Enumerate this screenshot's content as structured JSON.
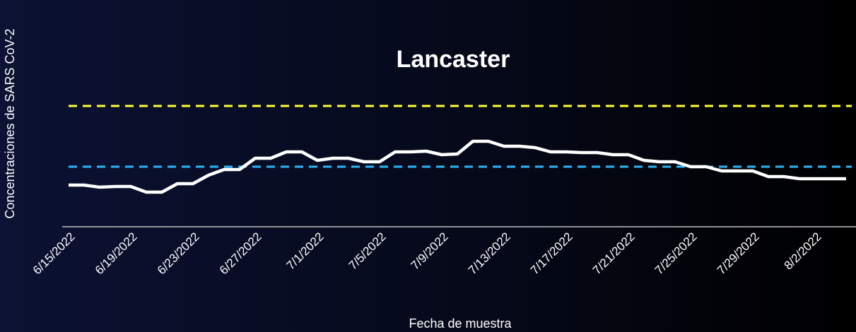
{
  "chart_data": {
    "type": "line",
    "title": "Lancaster",
    "y_label": "Concentraciones de SARS CoV-2",
    "x_label": "Fecha de muestra",
    "categories": [
      "6/15/2022",
      null,
      null,
      null,
      "6/19/2022",
      null,
      null,
      null,
      "6/23/2022",
      null,
      null,
      null,
      "6/27/2022",
      null,
      null,
      null,
      "7/1/2022",
      null,
      null,
      null,
      "7/5/2022",
      null,
      null,
      null,
      "7/9/2022",
      null,
      null,
      null,
      "7/13/2022",
      null,
      null,
      null,
      "7/17/2022",
      null,
      null,
      null,
      "7/21/2022",
      null,
      null,
      null,
      "7/25/2022",
      null,
      null,
      null,
      "7/29/2022",
      null,
      null,
      null,
      "8/2/2022",
      null,
      null
    ],
    "series": [
      {
        "color": "#ffffff",
        "values": [
          2.95,
          2.95,
          2.8,
          2.85,
          2.85,
          2.45,
          2.45,
          3.05,
          3.05,
          3.65,
          4.05,
          4.05,
          4.85,
          4.85,
          5.3,
          5.3,
          4.7,
          4.85,
          4.85,
          4.6,
          4.6,
          5.3,
          5.3,
          5.35,
          5.1,
          5.15,
          6.05,
          6.05,
          5.7,
          5.7,
          5.6,
          5.3,
          5.3,
          5.25,
          5.25,
          5.1,
          5.1,
          4.7,
          4.6,
          4.6,
          4.25,
          4.25,
          3.95,
          3.95,
          3.95,
          3.55,
          3.55,
          3.4,
          3.4,
          3.4,
          3.4
        ]
      }
    ],
    "reference_lines": [
      {
        "value": 8.55,
        "color": "#ffff33"
      },
      {
        "value": 4.25,
        "color": "#29b6f6"
      }
    ],
    "ylim": [
      0,
      10
    ]
  }
}
